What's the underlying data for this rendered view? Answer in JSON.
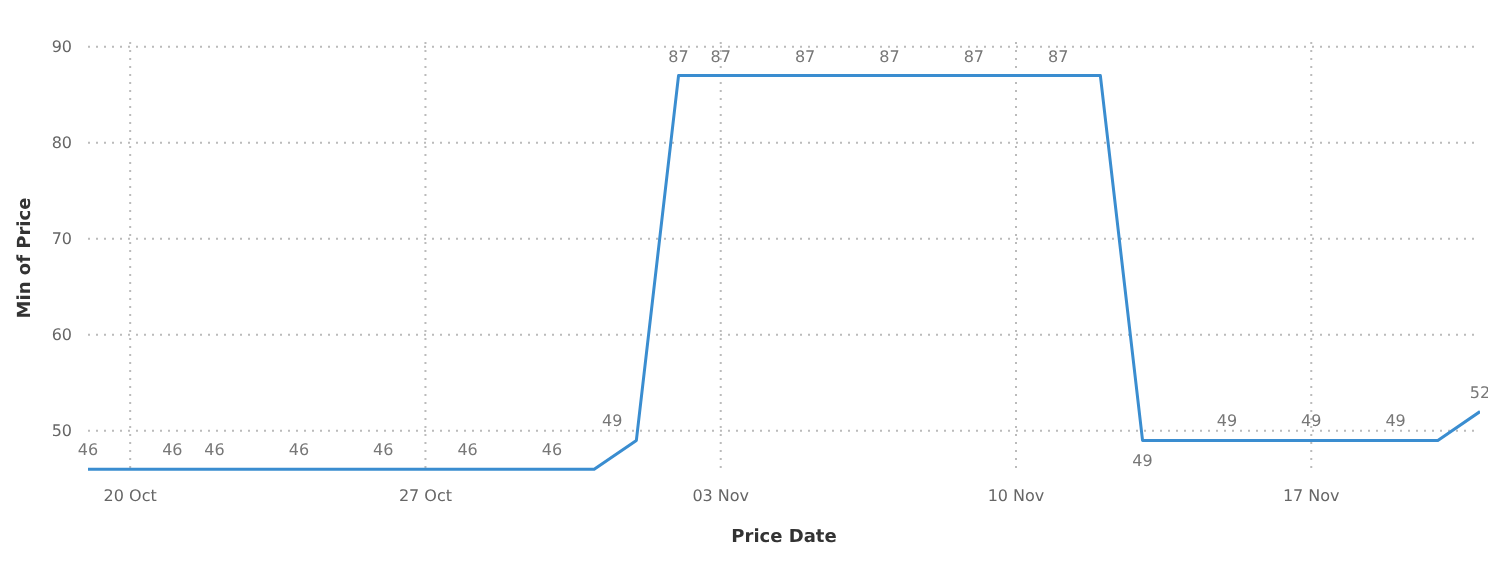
{
  "chart_data": {
    "type": "line",
    "xlabel": "Price Date",
    "ylabel": "Min of Price",
    "x": [
      "--10-19",
      "--10-21",
      "--10-22",
      "--10-24",
      "--10-26",
      "--10-28",
      "--10-30",
      "--10-31",
      "--11-01",
      "--11-02",
      "--11-03",
      "--11-05",
      "--11-07",
      "--11-09",
      "--11-11",
      "--11-12",
      "--11-13",
      "--11-15",
      "--11-17",
      "--11-19",
      "--11-20",
      "--11-21"
    ],
    "series": [
      {
        "color": "#3a8dd0",
        "values": [
          46,
          46,
          46,
          46,
          46,
          46,
          46,
          46,
          49,
          87,
          87,
          87,
          87,
          87,
          87,
          87,
          49,
          49,
          49,
          49,
          49,
          52
        ],
        "value_labels": [
          "46",
          "46",
          "46",
          "46",
          "46",
          "46",
          "46",
          null,
          "49",
          "87",
          "87",
          "87",
          "87",
          "87",
          "87",
          null,
          "49",
          "49",
          "49",
          "49",
          null,
          "52"
        ]
      }
    ],
    "xlim": [
      "--10-19",
      "--11-21"
    ],
    "xticks": [
      {
        "value": "--10-20",
        "label": "20 Oct"
      },
      {
        "value": "--10-27",
        "label": "27 Oct"
      },
      {
        "value": "--11-03",
        "label": "03 Nov"
      },
      {
        "value": "--11-10",
        "label": "10 Nov"
      },
      {
        "value": "--11-17",
        "label": "17 Nov"
      }
    ],
    "ylim": [
      45.5,
      90.5
    ],
    "yticks": [
      50,
      60,
      70,
      80,
      90
    ],
    "grid": true,
    "legend": false,
    "marker": "none",
    "line_style": "solid"
  }
}
